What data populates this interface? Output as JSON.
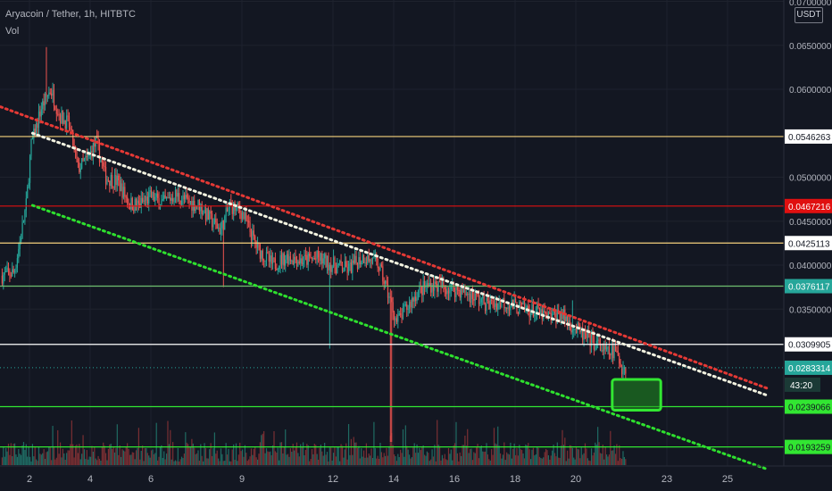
{
  "header": {
    "symbol": "Aryacoin / Tether, 1h, HITBTC",
    "indicator": "Vol"
  },
  "axis": {
    "currency": "USDT",
    "top_label": "0.0700000"
  },
  "countdown": "43:20",
  "colors": {
    "background": "#131722",
    "grid": "#1e222d",
    "up": "#26a69a",
    "down": "#ef5350",
    "level_yellow": "#f6d27c",
    "level_red": "#e01010",
    "level_green": "#6fbf6f",
    "level_bright_green": "#32e632",
    "trend_red": "#e53935",
    "trend_white": "#f2f2e0",
    "trend_green": "#2ee02e",
    "label_white": "#ffffff",
    "label_last": "#26a69a"
  },
  "chart_data": {
    "type": "candlestick",
    "title": "Aryacoin / Tether, 1h, HITBTC",
    "y_unit": "USDT",
    "ylim": [
      0.019,
      0.07
    ],
    "y_ticks": [
      0.065,
      0.06,
      0.05,
      0.045,
      0.04,
      0.035
    ],
    "y_tick_labels": [
      "0.0650000",
      "0.0600000",
      "0.0500000",
      "0.0450000",
      "0.0400000",
      "0.0350000"
    ],
    "x_ticks": [
      2,
      4,
      6,
      9,
      12,
      14,
      16,
      18,
      20,
      23,
      25
    ],
    "x_tick_labels": [
      "2",
      "4",
      "6",
      "9",
      "12",
      "14",
      "16",
      "18",
      "20",
      "23",
      "25"
    ],
    "xlim": [
      1.05,
      26.3
    ],
    "last_price": 0.0283314,
    "price_path": [
      [
        1.1,
        0.0388
      ],
      [
        1.5,
        0.0392
      ],
      [
        1.7,
        0.043
      ],
      [
        1.9,
        0.047
      ],
      [
        2.05,
        0.0535
      ],
      [
        2.4,
        0.058
      ],
      [
        2.7,
        0.06
      ],
      [
        3.0,
        0.057
      ],
      [
        3.3,
        0.056
      ],
      [
        3.6,
        0.051
      ],
      [
        3.9,
        0.052
      ],
      [
        4.2,
        0.054
      ],
      [
        4.5,
        0.05
      ],
      [
        4.9,
        0.0495
      ],
      [
        5.3,
        0.047
      ],
      [
        5.6,
        0.0468
      ],
      [
        6.0,
        0.0478
      ],
      [
        6.4,
        0.047
      ],
      [
        6.8,
        0.048
      ],
      [
        7.2,
        0.0472
      ],
      [
        7.6,
        0.0468
      ],
      [
        8.0,
        0.045
      ],
      [
        8.3,
        0.044
      ],
      [
        8.6,
        0.0468
      ],
      [
        9.0,
        0.046
      ],
      [
        9.5,
        0.042
      ],
      [
        10.0,
        0.04
      ],
      [
        10.5,
        0.041
      ],
      [
        11.0,
        0.0405
      ],
      [
        11.5,
        0.0408
      ],
      [
        12.0,
        0.04
      ],
      [
        12.5,
        0.0395
      ],
      [
        13.0,
        0.041
      ],
      [
        13.5,
        0.04
      ],
      [
        13.8,
        0.037
      ],
      [
        14.1,
        0.0335
      ],
      [
        14.4,
        0.035
      ],
      [
        14.8,
        0.037
      ],
      [
        15.2,
        0.0378
      ],
      [
        15.6,
        0.0375
      ],
      [
        16.1,
        0.0372
      ],
      [
        16.6,
        0.0365
      ],
      [
        17.1,
        0.0355
      ],
      [
        17.6,
        0.0358
      ],
      [
        18.1,
        0.0352
      ],
      [
        18.6,
        0.0348
      ],
      [
        19.1,
        0.034
      ],
      [
        19.5,
        0.0345
      ],
      [
        19.9,
        0.033
      ],
      [
        20.3,
        0.0318
      ],
      [
        20.7,
        0.031
      ],
      [
        21.0,
        0.03
      ],
      [
        21.3,
        0.0302
      ],
      [
        21.5,
        0.0285
      ],
      [
        21.65,
        0.0283
      ]
    ],
    "horizontal_levels": [
      {
        "value": 0.0546263,
        "label": "0.0546263",
        "color": "#f6d27c",
        "label_bg": "#ffffff",
        "label_fg": "#131722"
      },
      {
        "value": 0.0467216,
        "label": "0.0467216",
        "color": "#e01010",
        "label_bg": "#e01010",
        "label_fg": "#ffffff"
      },
      {
        "value": 0.0425113,
        "label": "0.0425113",
        "color": "#f6d27c",
        "label_bg": "#ffffff",
        "label_fg": "#131722"
      },
      {
        "value": 0.0376117,
        "label": "0.0376117",
        "color": "#6fbf6f",
        "label_bg": "#26a69a",
        "label_fg": "#ffffff"
      },
      {
        "value": 0.0309905,
        "label": "0.0309905",
        "color": "#ffffff",
        "label_bg": "#ffffff",
        "label_fg": "#131722"
      },
      {
        "value": 0.0239066,
        "label": "0.0239066",
        "color": "#32e632",
        "label_bg": "#32e632",
        "label_fg": "#131722"
      },
      {
        "value": 0.0193259,
        "label": "0.0193259",
        "color": "#32e632",
        "label_bg": "#32e632",
        "label_fg": "#131722"
      }
    ],
    "trendlines": [
      {
        "name": "red",
        "color": "#e53935",
        "from": [
          1.05,
          0.058
        ],
        "to": [
          26.3,
          0.026
        ]
      },
      {
        "name": "white",
        "color": "#f2f2e0",
        "from": [
          2.1,
          0.055
        ],
        "to": [
          26.3,
          0.0252
        ]
      },
      {
        "name": "green",
        "color": "#2ee02e",
        "from": [
          2.1,
          0.0468
        ],
        "to": [
          26.3,
          0.0168
        ]
      }
    ],
    "target_box": {
      "x0": 21.2,
      "x1": 22.8,
      "y0": 0.0235,
      "y1": 0.027,
      "color": "#1f8f1f"
    }
  }
}
